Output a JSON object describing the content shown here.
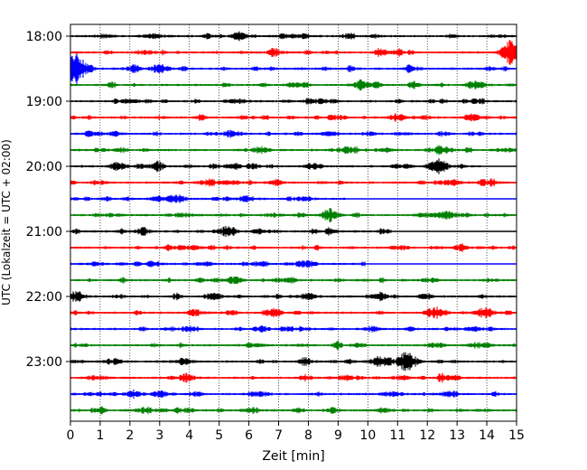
{
  "chart_data": {
    "type": "line",
    "title": "",
    "xlabel": "Zeit  [min]",
    "ylabel": "UTC (Lokalzeit = UTC + 02:00)",
    "xlim": [
      0,
      15
    ],
    "x_ticks": [
      "0",
      "1",
      "2",
      "3",
      "4",
      "5",
      "6",
      "7",
      "8",
      "9",
      "10",
      "11",
      "12",
      "13",
      "14",
      "15"
    ],
    "y_tick_labels": [
      "18:00",
      "19:00",
      "20:00",
      "21:00",
      "22:00",
      "23:00"
    ],
    "grid_x": true,
    "trace_colors": [
      "#000000",
      "#ff0000",
      "#0000ff",
      "#008000"
    ],
    "series": [
      {
        "start": "18:00",
        "bursts": [
          [
            1.2,
            0.5
          ],
          [
            2.8,
            0.5
          ],
          [
            5.7,
            0.6
          ],
          [
            7.4,
            0.5
          ]
        ],
        "end_min": 15
      },
      {
        "start": "18:15",
        "bursts": [
          [
            14.8,
            3.2
          ],
          [
            10.6,
            0.5
          ],
          [
            6.9,
            0.4
          ]
        ],
        "end_min": 15
      },
      {
        "start": "18:30",
        "bursts": [
          [
            0.1,
            3.5
          ],
          [
            0.4,
            1.5
          ],
          [
            3.0,
            1.2
          ],
          [
            2.1,
            0.6
          ]
        ],
        "end_min": 15
      },
      {
        "start": "18:45",
        "bursts": [
          [
            9.8,
            1.0
          ],
          [
            13.6,
            1.2
          ],
          [
            7.5,
            0.6
          ]
        ],
        "end_min": 15
      },
      {
        "start": "19:00",
        "bursts": [
          [
            2.0,
            0.5
          ],
          [
            5.6,
            0.5
          ],
          [
            8.2,
            0.5
          ]
        ],
        "end_min": 15
      },
      {
        "start": "19:15",
        "bursts": [
          [
            11.0,
            0.9
          ],
          [
            13.5,
            0.8
          ],
          [
            9.0,
            0.5
          ]
        ],
        "end_min": 15
      },
      {
        "start": "19:30",
        "bursts": [
          [
            5.5,
            0.6
          ],
          [
            1.5,
            0.5
          ],
          [
            8.7,
            0.5
          ]
        ],
        "end_min": 15
      },
      {
        "start": "19:45",
        "bursts": [
          [
            6.4,
            0.8
          ],
          [
            9.3,
            0.7
          ],
          [
            10.6,
            0.6
          ],
          [
            12.6,
            0.6
          ]
        ],
        "end_min": 15
      },
      {
        "start": "20:00",
        "bursts": [
          [
            12.4,
            2.2
          ],
          [
            1.6,
            0.9
          ],
          [
            2.9,
            0.8
          ],
          [
            5.5,
            0.8
          ],
          [
            8.2,
            0.6
          ]
        ],
        "end_min": 13.8
      },
      {
        "start": "20:15",
        "bursts": [
          [
            4.6,
            0.6
          ],
          [
            6.9,
            0.5
          ],
          [
            12.8,
            0.6
          ],
          [
            14.1,
            0.5
          ]
        ],
        "end_min": 15
      },
      {
        "start": "20:30",
        "bursts": [
          [
            5.9,
            0.7
          ],
          [
            3.4,
            0.5
          ],
          [
            7.8,
            0.5
          ]
        ],
        "end_min": 9.3
      },
      {
        "start": "20:45",
        "bursts": [
          [
            8.7,
            1.3
          ],
          [
            12.6,
            1.0
          ],
          [
            6.8,
            0.5
          ],
          [
            3.8,
            0.5
          ]
        ],
        "end_min": 15
      },
      {
        "start": "21:00",
        "bursts": [
          [
            5.3,
            0.9
          ],
          [
            6.4,
            0.6
          ],
          [
            2.4,
            0.5
          ]
        ],
        "end_min": 10.8
      },
      {
        "start": "21:15",
        "bursts": [
          [
            4.1,
            0.5
          ],
          [
            11.1,
            0.5
          ],
          [
            13.1,
            0.5
          ]
        ],
        "end_min": 15
      },
      {
        "start": "21:30",
        "bursts": [
          [
            7.8,
            0.7
          ],
          [
            0.9,
            0.5
          ],
          [
            10.3,
            0.5
          ]
        ],
        "end_min": 9.9
      },
      {
        "start": "21:45",
        "bursts": [
          [
            5.4,
            0.6
          ],
          [
            12.1,
            0.6
          ],
          [
            7.3,
            0.4
          ]
        ],
        "end_min": 15
      },
      {
        "start": "22:00",
        "bursts": [
          [
            0.2,
            1.3
          ],
          [
            4.8,
            0.8
          ],
          [
            8.0,
            0.7
          ],
          [
            10.3,
            0.6
          ]
        ],
        "end_min": 15
      },
      {
        "start": "22:15",
        "bursts": [
          [
            12.3,
            1.3
          ],
          [
            13.9,
            1.0
          ],
          [
            6.8,
            0.9
          ],
          [
            4.3,
            0.6
          ]
        ],
        "end_min": 15
      },
      {
        "start": "22:30",
        "bursts": [
          [
            4.0,
            0.6
          ],
          [
            6.4,
            0.6
          ],
          [
            10.1,
            0.6
          ],
          [
            13.6,
            0.5
          ]
        ],
        "end_min": 15
      },
      {
        "start": "22:45",
        "bursts": [
          [
            12.3,
            0.6
          ],
          [
            13.7,
            0.6
          ],
          [
            6.2,
            0.4
          ]
        ],
        "end_min": 15
      },
      {
        "start": "23:00",
        "bursts": [
          [
            11.3,
            2.2
          ],
          [
            10.4,
            1.3
          ],
          [
            3.8,
            0.8
          ],
          [
            1.5,
            0.5
          ],
          [
            7.9,
            0.6
          ]
        ],
        "end_min": 15
      },
      {
        "start": "23:15",
        "bursts": [
          [
            3.9,
            0.6
          ],
          [
            9.3,
            0.6
          ],
          [
            12.6,
            0.5
          ],
          [
            11.1,
            0.5
          ]
        ],
        "end_min": 15
      },
      {
        "start": "23:30",
        "bursts": [
          [
            2.1,
            0.8
          ],
          [
            3.0,
            0.6
          ],
          [
            6.4,
            0.6
          ],
          [
            10.9,
            0.5
          ],
          [
            12.7,
            0.5
          ]
        ],
        "end_min": 15
      },
      {
        "start": "23:45",
        "bursts": [
          [
            2.5,
            0.7
          ],
          [
            6.1,
            0.6
          ],
          [
            8.8,
            0.6
          ],
          [
            10.5,
            0.5
          ],
          [
            3.9,
            0.5
          ]
        ],
        "end_min": 15
      }
    ]
  }
}
